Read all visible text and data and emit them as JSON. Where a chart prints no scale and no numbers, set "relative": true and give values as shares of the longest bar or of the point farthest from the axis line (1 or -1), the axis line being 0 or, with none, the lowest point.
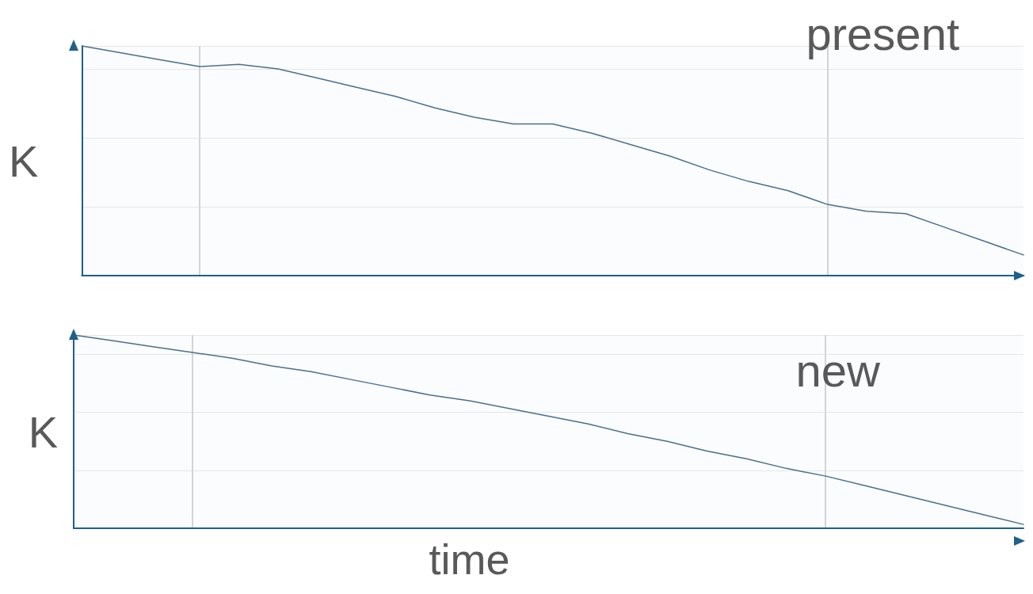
{
  "chart_data": [
    {
      "type": "line",
      "title": "present",
      "ylabel": "K",
      "relative": true,
      "grid": true,
      "marker": "none",
      "tick_labels": false,
      "categories": [
        null,
        null,
        null,
        null,
        null,
        null,
        null,
        null,
        null,
        null,
        null,
        null,
        null,
        null,
        null,
        null,
        null,
        null,
        null,
        null,
        null,
        null,
        null,
        null,
        null
      ],
      "series": [
        {
          "color": "#4a6f8f",
          "values": [
            1.0,
            0.97,
            0.94,
            0.91,
            0.92,
            0.9,
            0.86,
            0.82,
            0.78,
            0.73,
            0.69,
            0.66,
            0.66,
            0.62,
            0.57,
            0.52,
            0.46,
            0.41,
            0.37,
            0.31,
            0.28,
            0.27,
            0.21,
            0.15,
            0.09
          ]
        }
      ]
    },
    {
      "type": "line",
      "title": "new",
      "ylabel": "K",
      "xlabel": "time",
      "relative": true,
      "grid": true,
      "marker": "none",
      "tick_labels": false,
      "categories": [
        null,
        null,
        null,
        null,
        null,
        null,
        null,
        null,
        null,
        null,
        null,
        null,
        null,
        null,
        null,
        null,
        null,
        null,
        null,
        null,
        null,
        null,
        null,
        null,
        null
      ],
      "series": [
        {
          "color": "#4a6f8f",
          "values": [
            1.0,
            0.97,
            0.94,
            0.91,
            0.88,
            0.84,
            0.81,
            0.77,
            0.73,
            0.69,
            0.66,
            0.62,
            0.58,
            0.54,
            0.49,
            0.45,
            0.4,
            0.36,
            0.31,
            0.27,
            0.22,
            0.17,
            0.12,
            0.07,
            0.02
          ]
        }
      ]
    }
  ]
}
